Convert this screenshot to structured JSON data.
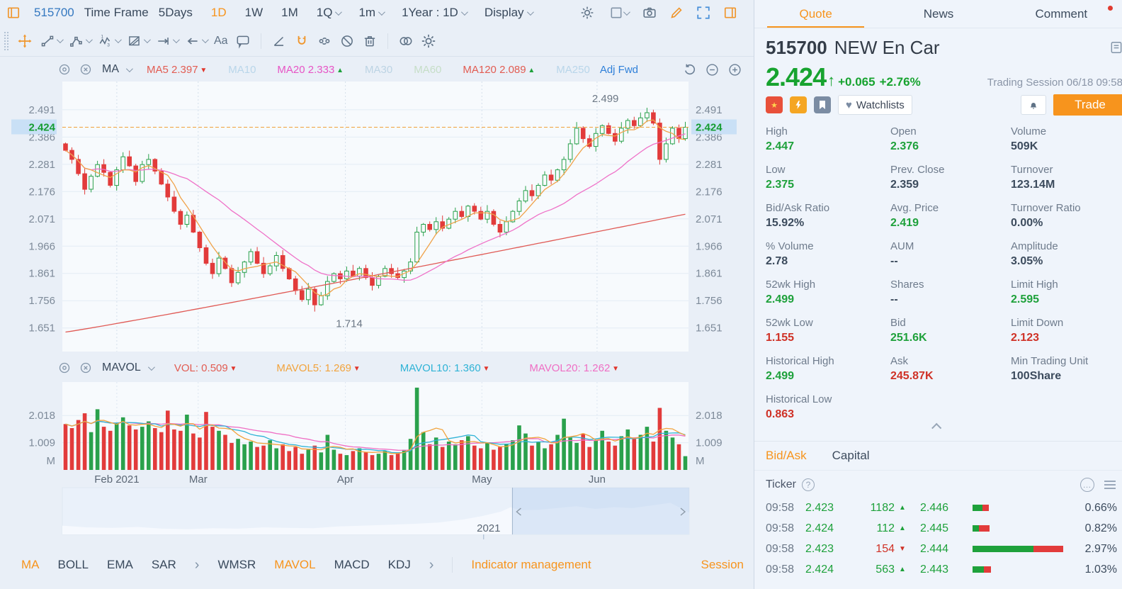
{
  "colors": {
    "up": "#1ea13b",
    "down": "#cf3126",
    "accent": "#f7941d",
    "blue": "#3478c0"
  },
  "left": {
    "toolbar": {
      "symbol": "515700",
      "time_frame_label": "Time Frame",
      "ranges": [
        {
          "label": "5Days",
          "active": false,
          "dropdown": false
        },
        {
          "label": "1D",
          "active": true,
          "dropdown": false
        },
        {
          "label": "1W",
          "active": false,
          "dropdown": false
        },
        {
          "label": "1M",
          "active": false,
          "dropdown": false
        },
        {
          "label": "1Q",
          "active": false,
          "dropdown": true
        },
        {
          "label": "1m",
          "active": false,
          "dropdown": true
        },
        {
          "label": "1Year : 1D",
          "active": false,
          "dropdown": true
        },
        {
          "label": "Display",
          "active": false,
          "dropdown": true
        }
      ]
    },
    "draw_toolbar": {
      "text_tool_label": "Aa"
    },
    "ma_row": {
      "name": "MA",
      "chips": [
        {
          "text": "MA5 2.397",
          "color": "#e25c52",
          "arrow": "down"
        },
        {
          "text": "MA10",
          "color": "#b9d6ea",
          "arrow": ""
        },
        {
          "text": "MA20 2.333",
          "color": "#e754c5",
          "arrow": "up"
        },
        {
          "text": "MA30",
          "color": "#bdd4e4",
          "arrow": ""
        },
        {
          "text": "MA60",
          "color": "#c6dec7",
          "arrow": ""
        },
        {
          "text": "MA120 2.089",
          "color": "#e25c52",
          "arrow": "up"
        },
        {
          "text": "MA250",
          "color": "#b9d6ea",
          "arrow": ""
        }
      ],
      "adj_label": "Adj Fwd"
    },
    "mavol_row": {
      "name": "MAVOL",
      "chips": [
        {
          "text": "VOL: 0.509",
          "color": "#e25c52",
          "arrow": "down"
        },
        {
          "text": "MAVOL5: 1.269",
          "color": "#f2a33c",
          "arrow": "down"
        },
        {
          "text": "MAVOL10: 1.360",
          "color": "#2fb3d6",
          "arrow": "down"
        },
        {
          "text": "MAVOL20: 1.262",
          "color": "#ef6ec4",
          "arrow": "down"
        }
      ]
    },
    "navigator": {
      "year_label": "2021"
    },
    "indicator_bar": {
      "group1": [
        {
          "label": "MA",
          "active": true
        },
        {
          "label": "BOLL",
          "active": false
        },
        {
          "label": "EMA",
          "active": false
        },
        {
          "label": "SAR",
          "active": false
        }
      ],
      "group2": [
        {
          "label": "WMSR",
          "active": false
        },
        {
          "label": "MAVOL",
          "active": true
        },
        {
          "label": "MACD",
          "active": false
        },
        {
          "label": "KDJ",
          "active": false
        }
      ],
      "management": "Indicator management",
      "session": "Session"
    }
  },
  "chart_data": {
    "type": "candlestick",
    "symbol": "515700",
    "interval": "1D",
    "y_ticks": [
      2.491,
      2.386,
      2.281,
      2.176,
      2.071,
      1.966,
      1.861,
      1.756,
      1.651
    ],
    "price_range": [
      1.56,
      2.6
    ],
    "current_price": 2.424,
    "high_annotation": 2.499,
    "low_annotation": 1.714,
    "high_index": 91,
    "low_index": 39,
    "months": [
      {
        "label": "Feb 2021",
        "pos": 0.087
      },
      {
        "label": "Mar",
        "pos": 0.217
      },
      {
        "label": "Apr",
        "pos": 0.452
      },
      {
        "label": "May",
        "pos": 0.67
      },
      {
        "label": "Jun",
        "pos": 0.854
      }
    ],
    "volume_axis": {
      "ticks": [
        2.018,
        1.009
      ],
      "unit": "M",
      "max": 3.1
    },
    "closes": [
      2.335,
      2.3,
      2.245,
      2.185,
      2.235,
      2.28,
      2.25,
      2.2,
      2.26,
      2.31,
      2.275,
      2.215,
      2.28,
      2.3,
      2.255,
      2.205,
      2.155,
      2.1,
      2.05,
      2.085,
      2.02,
      1.96,
      1.9,
      1.86,
      1.92,
      1.88,
      1.825,
      1.865,
      1.905,
      1.945,
      1.9,
      1.86,
      1.89,
      1.93,
      1.88,
      1.84,
      1.795,
      1.76,
      1.8,
      1.74,
      1.775,
      1.83,
      1.86,
      1.84,
      1.87,
      1.85,
      1.88,
      1.845,
      1.815,
      1.85,
      1.88,
      1.86,
      1.845,
      1.87,
      1.905,
      2.02,
      2.05,
      2.03,
      2.06,
      2.035,
      2.07,
      2.1,
      2.08,
      2.12,
      2.1,
      2.07,
      2.1,
      2.05,
      2.02,
      2.06,
      2.1,
      2.14,
      2.18,
      2.16,
      2.2,
      2.24,
      2.22,
      2.26,
      2.3,
      2.36,
      2.42,
      2.38,
      2.35,
      2.4,
      2.43,
      2.4,
      2.37,
      2.42,
      2.45,
      2.43,
      2.46,
      2.48,
      2.44,
      2.3,
      2.36,
      2.42,
      2.38,
      2.424
    ],
    "volumes": [
      1.7,
      1.55,
      1.85,
      2.1,
      1.4,
      2.25,
      1.6,
      1.45,
      1.75,
      1.95,
      1.65,
      1.5,
      1.6,
      1.8,
      1.55,
      1.4,
      2.2,
      1.5,
      1.45,
      2.05,
      1.35,
      1.2,
      2.15,
      1.6,
      1.45,
      1.3,
      1.0,
      1.15,
      0.95,
      1.05,
      0.85,
      0.9,
      1.1,
      0.8,
      0.95,
      0.7,
      0.85,
      0.6,
      0.75,
      0.9,
      0.65,
      1.3,
      0.75,
      0.6,
      0.55,
      0.7,
      0.8,
      0.65,
      0.55,
      0.6,
      0.7,
      0.55,
      0.65,
      0.75,
      1.15,
      3.05,
      1.4,
      0.95,
      1.2,
      0.85,
      1.05,
      0.95,
      1.1,
      1.25,
      0.9,
      0.8,
      1.0,
      0.75,
      0.85,
      0.95,
      1.1,
      1.65,
      1.35,
      0.9,
      1.05,
      0.8,
      0.95,
      1.3,
      1.9,
      1.2,
      1.0,
      1.35,
      0.85,
      1.1,
      1.45,
      1.05,
      0.9,
      1.25,
      1.5,
      1.15,
      1.3,
      1.6,
      1.05,
      2.3,
      1.45,
      1.2,
      0.95,
      0.51
    ],
    "ma": {
      "ma5_color": "#f0a24a",
      "ma20_color": "#ef72c8",
      "ma120_color": "#e05a55",
      "ma120_start": 1.635,
      "ma120_end": 2.089
    },
    "mavol_colors": {
      "mavol5": "#f2a33c",
      "mavol10": "#2fb3d6",
      "mavol20": "#ef6ec4"
    }
  },
  "quote_panel": {
    "tabs": [
      {
        "label": "Quote",
        "active": true,
        "dot": false
      },
      {
        "label": "News",
        "active": false,
        "dot": false
      },
      {
        "label": "Comment",
        "active": false,
        "dot": true
      }
    ],
    "symbol": "515700",
    "name": "NEW En Car",
    "price": "2.424",
    "change": "+0.065",
    "change_pct": "+2.76%",
    "session": "Trading Session 06/18 09:58",
    "watchlists_label": "Watchlists",
    "trade_label": "Trade",
    "stats": [
      {
        "label": "High",
        "value": "2.447",
        "tone": "up"
      },
      {
        "label": "Open",
        "value": "2.376",
        "tone": "up"
      },
      {
        "label": "Volume",
        "value": "509K",
        "tone": "dark"
      },
      {
        "label": "Low",
        "value": "2.375",
        "tone": "up"
      },
      {
        "label": "Prev. Close",
        "value": "2.359",
        "tone": "dark"
      },
      {
        "label": "Turnover",
        "value": "123.14M",
        "tone": "dark"
      },
      {
        "label": "Bid/Ask Ratio",
        "value": "15.92%",
        "tone": "dark"
      },
      {
        "label": "Avg. Price",
        "value": "2.419",
        "tone": "up"
      },
      {
        "label": "Turnover Ratio",
        "value": "0.00%",
        "tone": "dark"
      },
      {
        "label": "% Volume",
        "value": "2.78",
        "tone": "dark"
      },
      {
        "label": "AUM",
        "value": "--",
        "tone": "dark"
      },
      {
        "label": "Amplitude",
        "value": "3.05%",
        "tone": "dark"
      },
      {
        "label": "52wk High",
        "value": "2.499",
        "tone": "up"
      },
      {
        "label": "Shares",
        "value": "--",
        "tone": "dark"
      },
      {
        "label": "Limit High",
        "value": "2.595",
        "tone": "up"
      },
      {
        "label": "52wk Low",
        "value": "1.155",
        "tone": "down"
      },
      {
        "label": "Bid",
        "value": "251.6K",
        "tone": "up"
      },
      {
        "label": "Limit Down",
        "value": "2.123",
        "tone": "down"
      },
      {
        "label": "Historical High",
        "value": "2.499",
        "tone": "up"
      },
      {
        "label": "Ask",
        "value": "245.87K",
        "tone": "down"
      },
      {
        "label": "Min Trading Unit",
        "value": "100Share",
        "tone": "dark"
      },
      {
        "label": "Historical Low",
        "value": "0.863",
        "tone": "down"
      }
    ],
    "subtabs": [
      {
        "label": "Bid/Ask",
        "active": true
      },
      {
        "label": "Capital",
        "active": false
      }
    ],
    "ticker": {
      "title": "Ticker",
      "rows": [
        {
          "time": "09:58",
          "price": "2.423",
          "qty": "1182",
          "dir": "up",
          "level": "2.446",
          "bar": [
            14,
            9
          ],
          "pct": "0.66%"
        },
        {
          "time": "09:58",
          "price": "2.424",
          "qty": "112",
          "dir": "up",
          "level": "2.445",
          "bar": [
            9,
            15
          ],
          "pct": "0.82%"
        },
        {
          "time": "09:58",
          "price": "2.423",
          "qty": "154",
          "dir": "down",
          "level": "2.444",
          "bar": [
            86,
            42
          ],
          "pct": "2.97%"
        },
        {
          "time": "09:58",
          "price": "2.424",
          "qty": "563",
          "dir": "up",
          "level": "2.443",
          "bar": [
            16,
            10
          ],
          "pct": "1.03%"
        }
      ]
    }
  }
}
